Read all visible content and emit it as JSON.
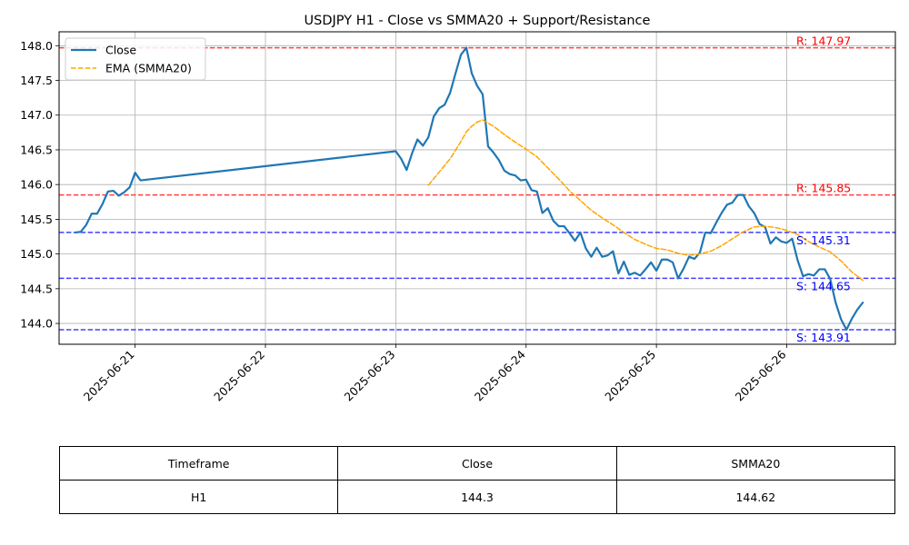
{
  "chart_data": {
    "type": "line",
    "title": "USDJPY H1 - Close vs SMMA20 + Support/Resistance",
    "xlabel": "",
    "ylabel": "",
    "x_range": [
      "2025-06-20 10:00",
      "2025-06-26 20:00"
    ],
    "ylim": [
      143.7,
      148.2
    ],
    "x_ticks": [
      "2025-06-21",
      "2025-06-22",
      "2025-06-23",
      "2025-06-24",
      "2025-06-25",
      "2025-06-26"
    ],
    "y_ticks": [
      "144.0",
      "144.5",
      "145.0",
      "145.5",
      "146.0",
      "146.5",
      "147.0",
      "147.5",
      "148.0"
    ],
    "grid": true,
    "legend_position": "top-left",
    "series": [
      {
        "name": "Close",
        "style": "solid",
        "color": "#1f77b4",
        "points": [
          [
            "2025-06-20 13:00",
            145.31
          ],
          [
            "2025-06-20 14:00",
            145.32
          ],
          [
            "2025-06-20 15:00",
            145.42
          ],
          [
            "2025-06-20 16:00",
            145.58
          ],
          [
            "2025-06-20 17:00",
            145.58
          ],
          [
            "2025-06-20 18:00",
            145.72
          ],
          [
            "2025-06-20 19:00",
            145.9
          ],
          [
            "2025-06-20 20:00",
            145.91
          ],
          [
            "2025-06-20 21:00",
            145.84
          ],
          [
            "2025-06-20 22:00",
            145.89
          ],
          [
            "2025-06-20 23:00",
            145.96
          ],
          [
            "2025-06-21 00:00",
            146.17
          ],
          [
            "2025-06-21 01:00",
            146.06
          ],
          [
            "2025-06-23 00:00",
            146.48
          ],
          [
            "2025-06-23 01:00",
            146.37
          ],
          [
            "2025-06-23 02:00",
            146.21
          ],
          [
            "2025-06-23 03:00",
            146.45
          ],
          [
            "2025-06-23 04:00",
            146.65
          ],
          [
            "2025-06-23 05:00",
            146.56
          ],
          [
            "2025-06-23 06:00",
            146.68
          ],
          [
            "2025-06-23 07:00",
            146.98
          ],
          [
            "2025-06-23 08:00",
            147.1
          ],
          [
            "2025-06-23 09:00",
            147.15
          ],
          [
            "2025-06-23 10:00",
            147.32
          ],
          [
            "2025-06-23 11:00",
            147.6
          ],
          [
            "2025-06-23 12:00",
            147.87
          ],
          [
            "2025-06-23 13:00",
            147.97
          ],
          [
            "2025-06-23 14:00",
            147.6
          ],
          [
            "2025-06-23 15:00",
            147.42
          ],
          [
            "2025-06-23 16:00",
            147.3
          ],
          [
            "2025-06-23 17:00",
            146.55
          ],
          [
            "2025-06-23 18:00",
            146.46
          ],
          [
            "2025-06-23 19:00",
            146.35
          ],
          [
            "2025-06-23 20:00",
            146.2
          ],
          [
            "2025-06-23 21:00",
            146.15
          ],
          [
            "2025-06-23 22:00",
            146.13
          ],
          [
            "2025-06-23 23:00",
            146.06
          ],
          [
            "2025-06-24 00:00",
            146.07
          ],
          [
            "2025-06-24 01:00",
            145.92
          ],
          [
            "2025-06-24 02:00",
            145.9
          ],
          [
            "2025-06-24 03:00",
            145.59
          ],
          [
            "2025-06-24 04:00",
            145.66
          ],
          [
            "2025-06-24 05:00",
            145.48
          ],
          [
            "2025-06-24 06:00",
            145.4
          ],
          [
            "2025-06-24 07:00",
            145.4
          ],
          [
            "2025-06-24 08:00",
            145.3
          ],
          [
            "2025-06-24 09:00",
            145.19
          ],
          [
            "2025-06-24 10:00",
            145.31
          ],
          [
            "2025-06-24 11:00",
            145.08
          ],
          [
            "2025-06-24 12:00",
            144.96
          ],
          [
            "2025-06-24 13:00",
            145.09
          ],
          [
            "2025-06-24 14:00",
            144.96
          ],
          [
            "2025-06-24 15:00",
            144.98
          ],
          [
            "2025-06-24 16:00",
            145.04
          ],
          [
            "2025-06-24 17:00",
            144.72
          ],
          [
            "2025-06-24 18:00",
            144.89
          ],
          [
            "2025-06-24 19:00",
            144.7
          ],
          [
            "2025-06-24 20:00",
            144.73
          ],
          [
            "2025-06-24 21:00",
            144.69
          ],
          [
            "2025-06-24 22:00",
            144.78
          ],
          [
            "2025-06-24 23:00",
            144.88
          ],
          [
            "2025-06-25 00:00",
            144.76
          ],
          [
            "2025-06-25 01:00",
            144.92
          ],
          [
            "2025-06-25 02:00",
            144.92
          ],
          [
            "2025-06-25 03:00",
            144.88
          ],
          [
            "2025-06-25 04:00",
            144.65
          ],
          [
            "2025-06-25 05:00",
            144.79
          ],
          [
            "2025-06-25 06:00",
            144.96
          ],
          [
            "2025-06-25 07:00",
            144.93
          ],
          [
            "2025-06-25 08:00",
            145.02
          ],
          [
            "2025-06-25 09:00",
            145.31
          ],
          [
            "2025-06-25 10:00",
            145.3
          ],
          [
            "2025-06-25 11:00",
            145.45
          ],
          [
            "2025-06-25 12:00",
            145.59
          ],
          [
            "2025-06-25 13:00",
            145.71
          ],
          [
            "2025-06-25 14:00",
            145.74
          ],
          [
            "2025-06-25 15:00",
            145.85
          ],
          [
            "2025-06-25 16:00",
            145.85
          ],
          [
            "2025-06-25 17:00",
            145.69
          ],
          [
            "2025-06-25 18:00",
            145.59
          ],
          [
            "2025-06-25 19:00",
            145.43
          ],
          [
            "2025-06-25 20:00",
            145.39
          ],
          [
            "2025-06-25 21:00",
            145.15
          ],
          [
            "2025-06-25 22:00",
            145.24
          ],
          [
            "2025-06-25 23:00",
            145.18
          ],
          [
            "2025-06-26 00:00",
            145.16
          ],
          [
            "2025-06-26 01:00",
            145.22
          ],
          [
            "2025-06-26 02:00",
            144.91
          ],
          [
            "2025-06-26 03:00",
            144.68
          ],
          [
            "2025-06-26 04:00",
            144.71
          ],
          [
            "2025-06-26 05:00",
            144.69
          ],
          [
            "2025-06-26 06:00",
            144.78
          ],
          [
            "2025-06-26 07:00",
            144.78
          ],
          [
            "2025-06-26 08:00",
            144.64
          ],
          [
            "2025-06-26 09:00",
            144.3
          ],
          [
            "2025-06-26 10:00",
            144.06
          ],
          [
            "2025-06-26 11:00",
            143.91
          ],
          [
            "2025-06-26 12:00",
            144.07
          ],
          [
            "2025-06-26 13:00",
            144.2
          ],
          [
            "2025-06-26 14:00",
            144.3
          ]
        ]
      },
      {
        "name": "EMA (SMMA20)",
        "style": "dashed",
        "color": "#ffa500",
        "points": [
          [
            "2025-06-23 06:00",
            145.99
          ],
          [
            "2025-06-23 08:00",
            146.18
          ],
          [
            "2025-06-23 10:00",
            146.37
          ],
          [
            "2025-06-23 12:00",
            146.62
          ],
          [
            "2025-06-23 13:00",
            146.76
          ],
          [
            "2025-06-23 14:00",
            146.84
          ],
          [
            "2025-06-23 15:00",
            146.9
          ],
          [
            "2025-06-23 16:00",
            146.93
          ],
          [
            "2025-06-23 18:00",
            146.84
          ],
          [
            "2025-06-23 20:00",
            146.72
          ],
          [
            "2025-06-23 22:00",
            146.61
          ],
          [
            "2025-06-24 00:00",
            146.51
          ],
          [
            "2025-06-24 02:00",
            146.4
          ],
          [
            "2025-06-24 04:00",
            146.24
          ],
          [
            "2025-06-24 06:00",
            146.08
          ],
          [
            "2025-06-24 08:00",
            145.91
          ],
          [
            "2025-06-24 10:00",
            145.77
          ],
          [
            "2025-06-24 12:00",
            145.63
          ],
          [
            "2025-06-24 14:00",
            145.52
          ],
          [
            "2025-06-24 16:00",
            145.42
          ],
          [
            "2025-06-24 18:00",
            145.31
          ],
          [
            "2025-06-24 20:00",
            145.21
          ],
          [
            "2025-06-24 22:00",
            145.14
          ],
          [
            "2025-06-25 00:00",
            145.08
          ],
          [
            "2025-06-25 02:00",
            145.06
          ],
          [
            "2025-06-25 04:00",
            145.01
          ],
          [
            "2025-06-25 06:00",
            144.98
          ],
          [
            "2025-06-25 08:00",
            145.0
          ],
          [
            "2025-06-25 10:00",
            145.04
          ],
          [
            "2025-06-25 12:00",
            145.12
          ],
          [
            "2025-06-25 14:00",
            145.22
          ],
          [
            "2025-06-25 16:00",
            145.32
          ],
          [
            "2025-06-25 18:00",
            145.39
          ],
          [
            "2025-06-25 20:00",
            145.4
          ],
          [
            "2025-06-25 22:00",
            145.38
          ],
          [
            "2025-06-26 00:00",
            145.34
          ],
          [
            "2025-06-26 02:00",
            145.28
          ],
          [
            "2025-06-26 04:00",
            145.18
          ],
          [
            "2025-06-26 06:00",
            145.1
          ],
          [
            "2025-06-26 08:00",
            145.03
          ],
          [
            "2025-06-26 10:00",
            144.9
          ],
          [
            "2025-06-26 12:00",
            144.74
          ],
          [
            "2025-06-26 14:00",
            144.62
          ]
        ]
      }
    ],
    "levels": [
      {
        "kind": "resistance",
        "value": 147.97,
        "label": "R: 147.97",
        "color": "#ff0000"
      },
      {
        "kind": "resistance",
        "value": 145.85,
        "label": "R: 145.85",
        "color": "#ff0000"
      },
      {
        "kind": "support",
        "value": 145.31,
        "label": "S: 145.31",
        "color": "#0000ff"
      },
      {
        "kind": "support",
        "value": 144.65,
        "label": "S: 144.65",
        "color": "#0000ff"
      },
      {
        "kind": "support",
        "value": 143.91,
        "label": "S: 143.91",
        "color": "#0000ff"
      }
    ]
  },
  "table": {
    "headers": [
      "Timeframe",
      "Close",
      "SMMA20"
    ],
    "rows": [
      [
        "H1",
        "144.3",
        "144.62"
      ]
    ]
  }
}
